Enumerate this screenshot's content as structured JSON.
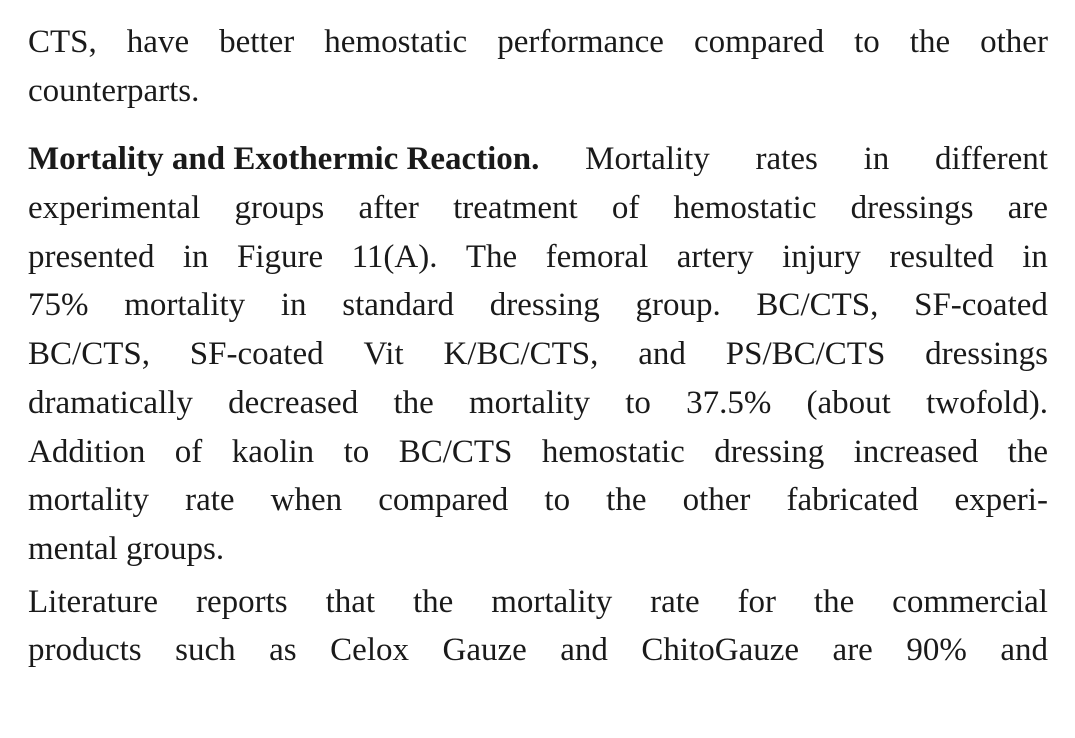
{
  "paragraphs": [
    {
      "lines": [
        [
          "CTS,",
          "have",
          "better",
          "hemostatic",
          "performance",
          "compared",
          "to",
          "the",
          "other"
        ],
        [
          "counterparts."
        ]
      ],
      "last_line_left": true
    },
    {
      "heading": "Mortality and Exothermic Reaction.",
      "lines": [
        [
          "Mortality",
          "rates",
          "in",
          "different"
        ],
        [
          "experimental",
          "groups",
          "after",
          "treatment",
          "of",
          "hemostatic",
          "dressings",
          "are"
        ],
        [
          "presented",
          "in",
          "Figure",
          "11(A).",
          "The",
          "femoral",
          "artery",
          "injury",
          "resulted",
          "in"
        ],
        [
          "75%",
          "mortality",
          "in",
          "standard",
          "dressing",
          "group.",
          "BC/CTS,",
          "SF-coated"
        ],
        [
          "BC/CTS,",
          "SF-coated",
          "Vit",
          "K/BC/CTS,",
          "and",
          "PS/BC/CTS",
          "dressings"
        ],
        [
          "dramatically",
          "decreased",
          "the",
          "mortality",
          "to",
          "37.5%",
          "(about",
          "twofold)."
        ],
        [
          "Addition",
          "of",
          "kaolin",
          "to",
          "BC/CTS",
          "hemostatic",
          "dressing",
          "increased",
          "the"
        ],
        [
          "mortality",
          "rate",
          "when",
          "compared",
          "to",
          "the",
          "other",
          "fabricated",
          "experi-"
        ],
        [
          "mental groups."
        ]
      ]
    },
    {
      "lines": [
        [
          "Literature",
          "reports",
          "that",
          "the",
          "mortality",
          "rate",
          "for",
          "the",
          "commercial"
        ],
        [
          "products",
          "such",
          "as",
          "Celox",
          "Gauze",
          "and",
          "ChitoGauze",
          "are",
          "90%",
          "and"
        ]
      ]
    }
  ]
}
